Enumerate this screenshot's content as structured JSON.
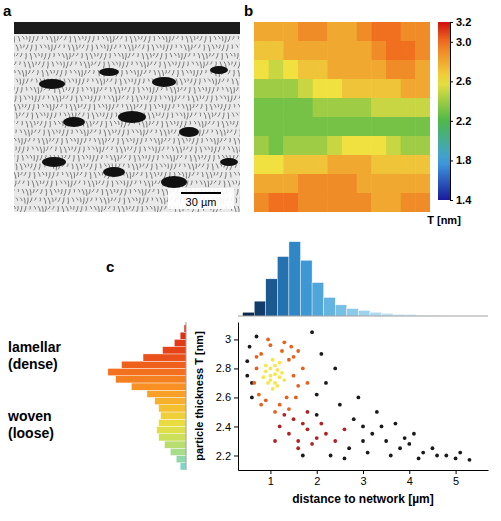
{
  "chart_data": [
    {
      "type": "image",
      "letter": "a",
      "scale_bar_label": "30 µm"
    },
    {
      "type": "heatmap",
      "letter": "b",
      "tick_labels": false,
      "values": [
        [
          2.8,
          2.8,
          2.8,
          2.9,
          2.9,
          2.8,
          2.8,
          2.9,
          3.0,
          3.0,
          2.9,
          2.9
        ],
        [
          2.7,
          2.7,
          2.8,
          2.8,
          2.8,
          2.8,
          2.8,
          2.8,
          2.9,
          3.0,
          3.0,
          2.9
        ],
        [
          2.6,
          2.5,
          2.6,
          2.7,
          2.7,
          2.8,
          2.8,
          2.8,
          2.8,
          2.9,
          2.9,
          2.8
        ],
        [
          2.4,
          2.4,
          2.4,
          2.5,
          2.6,
          2.6,
          2.7,
          2.7,
          2.7,
          2.7,
          2.8,
          2.8
        ],
        [
          2.3,
          2.3,
          2.3,
          2.3,
          2.4,
          2.4,
          2.4,
          2.4,
          2.5,
          2.5,
          2.5,
          2.5
        ],
        [
          2.3,
          2.3,
          2.3,
          2.3,
          2.3,
          2.3,
          2.3,
          2.3,
          2.3,
          2.3,
          2.3,
          2.3
        ],
        [
          2.4,
          2.3,
          2.4,
          2.4,
          2.4,
          2.5,
          2.6,
          2.6,
          2.6,
          2.5,
          2.4,
          2.4
        ],
        [
          2.6,
          2.6,
          2.7,
          2.7,
          2.7,
          2.8,
          2.8,
          2.8,
          2.7,
          2.7,
          2.7,
          2.7
        ],
        [
          2.8,
          2.8,
          2.8,
          2.9,
          2.9,
          2.9,
          2.9,
          2.8,
          2.8,
          2.8,
          2.8,
          2.8
        ],
        [
          2.9,
          3.0,
          3.0,
          2.9,
          2.9,
          2.9,
          2.9,
          2.9,
          2.8,
          2.8,
          2.9,
          2.9
        ]
      ],
      "colorbar": {
        "range": [
          1.4,
          3.2
        ],
        "ticks": [
          3.2,
          {
            "value": 3,
            "label": "3.0"
          },
          2.6,
          2.2,
          1.8,
          1.4
        ],
        "label": "T [nm]"
      }
    },
    {
      "type": "scatter",
      "letter": "c",
      "marker": "circle",
      "x_label": "distance to network [µm]",
      "y_label": "particle thickness T [nm]",
      "xlim": [
        0.3,
        5.7
      ],
      "ylim": [
        2.1,
        3.12
      ],
      "xticks": [
        1,
        2,
        3,
        4,
        5
      ],
      "yticks": [
        2.2,
        2.4,
        2.6,
        2.8,
        3
      ],
      "annotations": [
        "lamellar (dense)",
        "woven (loose)"
      ],
      "series": [
        {
          "color": "#1a1a1a",
          "x": [
            0.5,
            0.6,
            0.55,
            2.0,
            2.2,
            2.5,
            2.8,
            3.0,
            3.2,
            3.5,
            3.8,
            4.0,
            4.3,
            4.6,
            5.0,
            5.3,
            2.3,
            2.7,
            3.1,
            3.4,
            3.6,
            4.1,
            4.5,
            4.8,
            2.1,
            1.9,
            2.4,
            0.6,
            0.7,
            2.9,
            3.3,
            3.9,
            4.2,
            5.1,
            2.6,
            1.7,
            2.0,
            0.5,
            3.0,
            3.7
          ],
          "values": [
            2.85,
            2.7,
            2.95,
            2.62,
            2.7,
            2.55,
            2.45,
            2.4,
            2.35,
            2.3,
            2.25,
            2.28,
            2.22,
            2.2,
            2.18,
            2.17,
            2.2,
            2.25,
            2.22,
            2.4,
            2.2,
            2.35,
            2.25,
            2.2,
            2.9,
            3.05,
            2.8,
            2.6,
            3.02,
            2.6,
            2.5,
            2.32,
            2.18,
            2.22,
            2.18,
            2.2,
            2.48,
            2.75,
            2.3,
            2.42
          ]
        },
        {
          "color": "#b22222",
          "x": [
            1.2,
            1.4,
            1.6,
            1.8,
            2.0,
            1.5,
            1.7,
            1.9,
            2.2,
            2.4,
            1.3,
            1.6,
            2.1,
            1.8,
            1.1,
            2.6
          ],
          "values": [
            2.4,
            2.35,
            2.3,
            2.38,
            2.32,
            2.45,
            2.42,
            2.28,
            2.35,
            2.3,
            2.48,
            2.25,
            2.42,
            2.5,
            2.3,
            2.38
          ]
        },
        {
          "color": "#e8601c",
          "x": [
            0.7,
            0.8,
            0.75,
            1.4,
            1.5,
            1.6,
            1.45,
            1.3,
            0.65,
            0.9,
            1.7,
            1.55,
            1.2,
            1.0,
            0.8,
            1.35,
            1.5,
            0.95,
            1.25,
            1.1,
            1.6,
            0.7,
            1.8,
            1.4
          ],
          "values": [
            2.8,
            2.9,
            2.62,
            2.86,
            2.75,
            2.68,
            2.95,
            2.98,
            2.7,
            2.58,
            2.8,
            2.6,
            2.55,
            2.96,
            2.55,
            2.6,
            2.88,
            3.0,
            2.92,
            2.5,
            2.92,
            2.88,
            2.7,
            2.52
          ]
        },
        {
          "color": "#f7e64a",
          "x": [
            0.9,
            1.0,
            1.1,
            1.2,
            1.0,
            1.1,
            0.95,
            1.05,
            1.15,
            1.25,
            1.0,
            1.1,
            0.85,
            1.2,
            1.3,
            0.9,
            1.05,
            1.15
          ],
          "values": [
            2.78,
            2.8,
            2.76,
            2.74,
            2.72,
            2.82,
            2.7,
            2.86,
            2.79,
            2.77,
            2.75,
            2.7,
            2.74,
            2.84,
            2.72,
            2.82,
            2.66,
            2.68
          ]
        }
      ],
      "top_histogram": {
        "type": "histogram",
        "tick_labels": false,
        "ylim": [
          0,
          42
        ],
        "bins": [
          0.4,
          0.65,
          0.9,
          1.15,
          1.4,
          1.65,
          1.9,
          2.15,
          2.4,
          2.65,
          2.9,
          3.15,
          3.4,
          3.65,
          3.9,
          4.15,
          4.4,
          4.65,
          4.9,
          5.15,
          5.4
        ],
        "counts": [
          2,
          8,
          20,
          32,
          40,
          30,
          18,
          10,
          6,
          4,
          3,
          2,
          1.5,
          1,
          1,
          0.5,
          0.5,
          0.3,
          0.2,
          0.1
        ],
        "colors": [
          "#0b2a4a",
          "#123d6a",
          "#1a5a8f",
          "#2473b0",
          "#2f87c6",
          "#3d97d2",
          "#50a6da",
          "#64b3e0",
          "#78bfe5",
          "#8ccaea",
          "#9ed3ee",
          "#aedbf1",
          "#bde2f4",
          "#cae8f6",
          "#d5edf8",
          "#def1fa",
          "#e6f5fb",
          "#edf8fc",
          "#f2fafd",
          "#f6fcfe"
        ]
      },
      "left_histogram": {
        "type": "histogram",
        "orientation": "horizontal",
        "tick_labels": false,
        "xlim": [
          0,
          42
        ],
        "bins": [
          2.1,
          2.15,
          2.2,
          2.25,
          2.3,
          2.35,
          2.4,
          2.45,
          2.5,
          2.55,
          2.6,
          2.65,
          2.7,
          2.75,
          2.8,
          2.85,
          2.9,
          2.95,
          3.0,
          3.05,
          3.1
        ],
        "counts": [
          3,
          5,
          8,
          11,
          14,
          15,
          14,
          13,
          14,
          16,
          20,
          28,
          36,
          40,
          33,
          22,
          12,
          6,
          3,
          1
        ],
        "colors": [
          "#7fd6c8",
          "#8fd9a8",
          "#a6dc8a",
          "#b9de70",
          "#cde05a",
          "#dde04a",
          "#e8dc40",
          "#f0d038",
          "#f4c030",
          "#f6b02c",
          "#f8a028",
          "#f89024",
          "#f58020",
          "#f2701e",
          "#ee601c",
          "#ea501a",
          "#e54418",
          "#e03a16",
          "#dc3014",
          "#d82812"
        ]
      }
    }
  ]
}
